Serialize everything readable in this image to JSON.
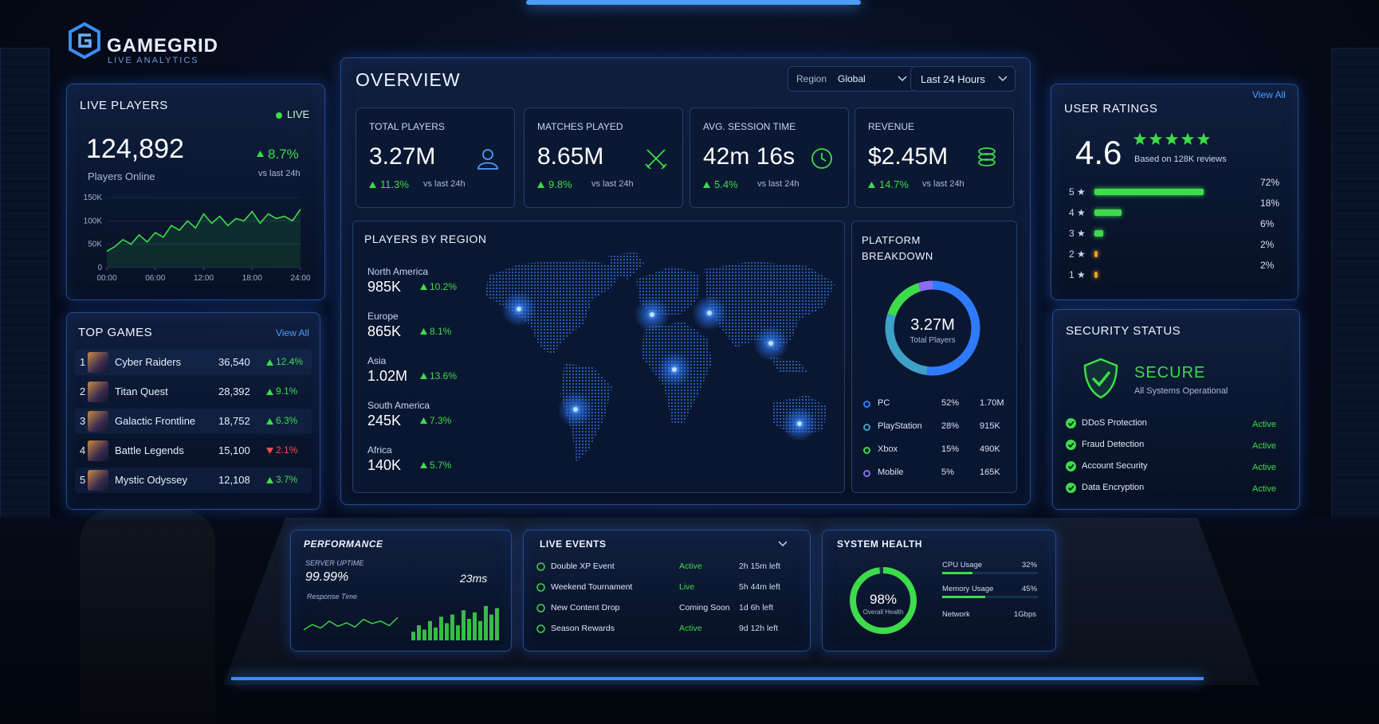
{
  "brand": {
    "name": "GAMEGRID",
    "tagline": "LIVE ANALYTICS"
  },
  "live_players": {
    "title": "LIVE PLAYERS",
    "status": "LIVE",
    "count": "124,892",
    "count_label": "Players Online",
    "change": "8.7%",
    "change_note": "vs last 24h",
    "chart_data": {
      "type": "line",
      "color": "#3ddc4a",
      "x": [
        0,
        1,
        2,
        3,
        4,
        5,
        6,
        7,
        8,
        9,
        10,
        11,
        12,
        13,
        14,
        15,
        16,
        17,
        18,
        19,
        20,
        21,
        22,
        23,
        24
      ],
      "values": [
        35000,
        45000,
        60000,
        50000,
        70000,
        55000,
        75000,
        65000,
        90000,
        80000,
        100000,
        85000,
        115000,
        95000,
        110000,
        90000,
        105000,
        100000,
        120000,
        95000,
        115000,
        105000,
        110000,
        100000,
        125000
      ],
      "xlim": [
        0,
        24
      ],
      "xticks": [
        {
          "value": 0,
          "label": "00:00"
        },
        {
          "value": 6,
          "label": "06:00"
        },
        {
          "value": 12,
          "label": "12:00"
        },
        {
          "value": 18,
          "label": "18:00"
        },
        {
          "value": 24,
          "label": "24:00"
        }
      ],
      "ylim": [
        0,
        150000
      ],
      "yticks": [
        0,
        {
          "value": 50000,
          "label": "50K"
        },
        {
          "value": 100000,
          "label": "100K"
        },
        {
          "value": 150000,
          "label": "150K"
        }
      ]
    }
  },
  "top_games": {
    "title": "TOP GAMES",
    "action": "View All",
    "rows": [
      {
        "rank": "1",
        "name": "Cyber Raiders",
        "players": "36,540",
        "change": "12.4%",
        "trend": "up"
      },
      {
        "rank": "2",
        "name": "Titan Quest",
        "players": "28,392",
        "change": "9.1%",
        "trend": "up"
      },
      {
        "rank": "3",
        "name": "Galactic Frontline",
        "players": "18,752",
        "change": "6.3%",
        "trend": "up"
      },
      {
        "rank": "4",
        "name": "Battle Legends",
        "players": "15,100",
        "change": "2.1%",
        "trend": "down"
      },
      {
        "rank": "5",
        "name": "Mystic Odyssey",
        "players": "12,108",
        "change": "3.7%",
        "trend": "up"
      }
    ]
  },
  "overview": {
    "title": "OVERVIEW",
    "filter_label": "Region",
    "filter_value": "Global",
    "time_range": "Last 24 Hours",
    "kpis": [
      {
        "label": "TOTAL PLAYERS",
        "value": "3.27M",
        "change": "11.3%",
        "note": "vs last 24h",
        "icon": "user"
      },
      {
        "label": "MATCHES PLAYED",
        "value": "8.65M",
        "change": "9.8%",
        "note": "vs last 24h",
        "icon": "swords"
      },
      {
        "label": "AVG. SESSION TIME",
        "value": "42m 16s",
        "change": "5.4%",
        "note": "vs last 24h",
        "icon": "clock"
      },
      {
        "label": "REVENUE",
        "value": "$2.45M",
        "change": "14.7%",
        "note": "vs last 24h",
        "icon": "coins"
      }
    ],
    "regions": {
      "title": "PLAYERS BY REGION",
      "items": [
        {
          "name": "North America",
          "value": "985K",
          "change": "10.2%"
        },
        {
          "name": "Europe",
          "value": "865K",
          "change": "8.1%"
        },
        {
          "name": "Asia",
          "value": "1.02M",
          "change": "13.6%"
        },
        {
          "name": "South America",
          "value": "245K",
          "change": "7.3%"
        },
        {
          "name": "Africa",
          "value": "140K",
          "change": "5.7%"
        }
      ]
    },
    "platform": {
      "title": "PLATFORM BREAKDOWN",
      "center_value": "3.27M",
      "center_label": "Total Players",
      "chart_data": {
        "type": "donut",
        "categories": [
          "PC",
          "PlayStation",
          "Xbox",
          "Mobile"
        ],
        "values": [
          52,
          28,
          15,
          5
        ],
        "value_labels": [
          "52%",
          "28%",
          "15%",
          "5%"
        ],
        "counts": [
          "1.70M",
          "915K",
          "490K",
          "165K"
        ],
        "colors": [
          "#2f7bff",
          "#3fa0c8",
          "#3ddc4a",
          "#8a6cf0"
        ]
      }
    }
  },
  "ratings": {
    "title": "USER RATINGS",
    "action": "View All",
    "score": "4.6",
    "note": "Based on 128K reviews",
    "chart_data": {
      "type": "bar",
      "categories": [
        "5 ★",
        "4 ★",
        "3 ★",
        "2 ★",
        "1 ★"
      ],
      "values": [
        72,
        18,
        6,
        2,
        2
      ],
      "value_labels": [
        "72%",
        "18%",
        "6%",
        "2%",
        "2%"
      ],
      "colors": [
        "#3ddc4a",
        "#3ddc4a",
        "#3ddc4a",
        "#f0a020",
        "#f0a020"
      ],
      "xlim": [
        0,
        100
      ]
    }
  },
  "security": {
    "title": "SECURITY STATUS",
    "status": "SECURE",
    "status_note": "All Systems Operational",
    "items": [
      {
        "name": "DDoS Protection",
        "state": "Active"
      },
      {
        "name": "Fraud Detection",
        "state": "Active"
      },
      {
        "name": "Account Security",
        "state": "Active"
      },
      {
        "name": "Data Encryption",
        "state": "Active"
      }
    ]
  },
  "performance": {
    "title": "PERFORMANCE",
    "uptime_label": "SERVER UPTIME",
    "uptime": "99.99%",
    "latency": "23ms",
    "response_label": "Response Time",
    "response_chart": {
      "type": "line",
      "color": "#3ddc4a",
      "values": [
        30,
        45,
        35,
        55,
        40,
        50,
        38,
        60,
        48,
        55,
        42,
        65
      ],
      "ylim": [
        0,
        100
      ]
    },
    "activity_chart": {
      "type": "bar",
      "color": "#3ddc4a",
      "values": [
        20,
        35,
        25,
        45,
        30,
        55,
        40,
        60,
        35,
        70,
        50,
        65,
        45,
        80,
        60,
        75
      ],
      "ylim": [
        0,
        100
      ]
    }
  },
  "events": {
    "title": "LIVE EVENTS",
    "rows": [
      {
        "name": "Double XP Event",
        "status": "Active",
        "time": "2h 15m left",
        "status_color": "#3ddc4a"
      },
      {
        "name": "Weekend Tournament",
        "status": "Live",
        "time": "5h 44m left",
        "status_color": "#3ddc4a"
      },
      {
        "name": "New Content Drop",
        "status": "Coming Soon",
        "time": "1d 6h left",
        "status_color": "#d8e2f5"
      },
      {
        "name": "Season Rewards",
        "status": "Active",
        "time": "9d 12h left",
        "status_color": "#3ddc4a"
      }
    ]
  },
  "system_health": {
    "title": "SYSTEM HEALTH",
    "score": {
      "value": 98,
      "label": "98%"
    },
    "score_label": "Overall Health",
    "xlim": [
      0,
      100
    ],
    "metrics": [
      {
        "name": "CPU Usage",
        "value": {
          "value": 32,
          "label": "32%"
        }
      },
      {
        "name": "Memory Usage",
        "value": {
          "value": 45,
          "label": "45%"
        }
      }
    ],
    "network_label": "Network",
    "network_value": "1Gbps"
  }
}
